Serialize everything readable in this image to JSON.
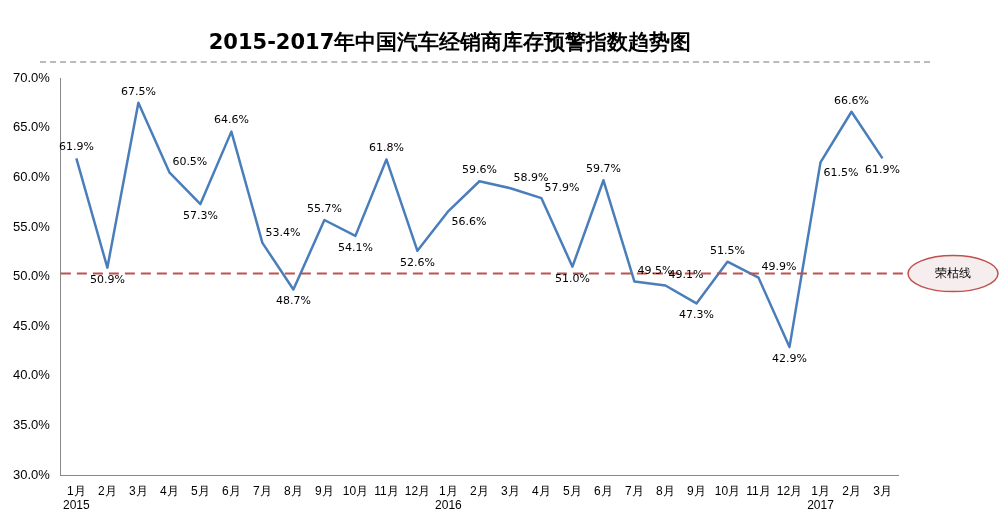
{
  "chart_data": {
    "type": "line",
    "title": "2015-2017年中国汽车经销商库存预警指数趋势图",
    "categories": [
      "1月\n2015",
      "2月",
      "3月",
      "4月",
      "5月",
      "6月",
      "7月",
      "8月",
      "9月",
      "10月",
      "11月",
      "12月",
      "1月\n2016",
      "2月",
      "3月",
      "4月",
      "5月",
      "6月",
      "7月",
      "8月",
      "9月",
      "10月",
      "11月",
      "12月",
      "1月\n2017",
      "2月",
      "3月"
    ],
    "series": [
      {
        "color": "#4a7ebb",
        "values": [
          61.9,
          50.9,
          67.5,
          60.5,
          57.3,
          64.6,
          53.4,
          48.7,
          55.7,
          54.1,
          61.8,
          52.6,
          56.6,
          59.6,
          58.9,
          57.9,
          51.0,
          59.7,
          49.5,
          49.1,
          47.3,
          51.5,
          49.9,
          42.9,
          61.5,
          66.6,
          61.9
        ],
        "value_labels": [
          "61.9%",
          "50.9%",
          "67.5%",
          "60.5%",
          "57.3%",
          "64.6%",
          "53.4%",
          "48.7%",
          "55.7%",
          "54.1%",
          "61.8%",
          "52.6%",
          "56.6%",
          "59.6%",
          "58.9%",
          "57.9%",
          "51.0%",
          "59.7%",
          "49.5%",
          "49.1%",
          "47.3%",
          "51.5%",
          "49.9%",
          "42.9%",
          "61.5%",
          "66.6%",
          "61.9%"
        ]
      }
    ],
    "ylim": [
      30,
      70
    ],
    "yticks": [
      {
        "value": 30,
        "label": "30.0%"
      },
      {
        "value": 35,
        "label": "35.0%"
      },
      {
        "value": 40,
        "label": "40.0%"
      },
      {
        "value": 45,
        "label": "45.0%"
      },
      {
        "value": 50,
        "label": "50.0%"
      },
      {
        "value": 55,
        "label": "55.0%"
      },
      {
        "value": 60,
        "label": "60.0%"
      },
      {
        "value": 65,
        "label": "65.0%"
      },
      {
        "value": 70,
        "label": "70.0%"
      }
    ],
    "ref_lines": [
      {
        "axis": "y",
        "value": 50.3,
        "label": "荣枯线",
        "color": "#c0504d",
        "line_style": "dashed"
      }
    ],
    "grid": false,
    "legend": false,
    "marker": "none",
    "line_style": "solid"
  }
}
